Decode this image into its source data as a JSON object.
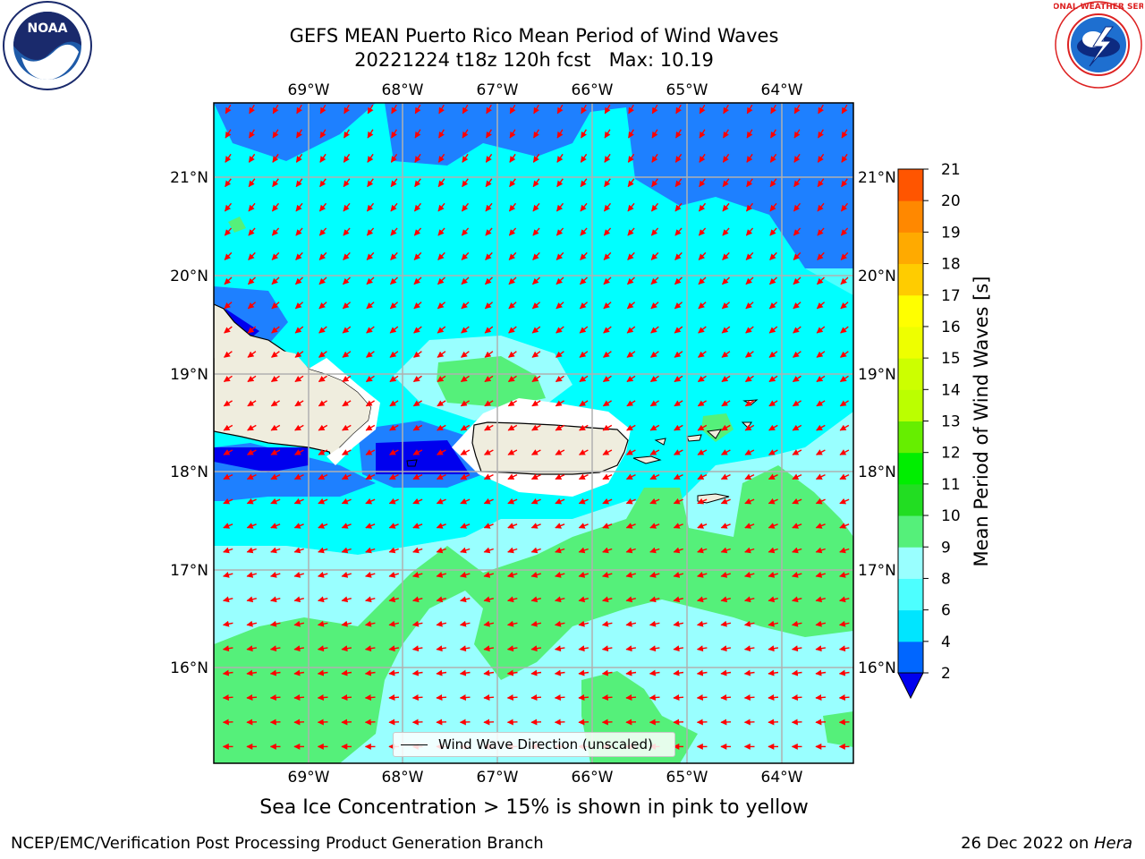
{
  "title": {
    "line1": "GEFS MEAN Puerto Rico Mean Period of Wind Waves",
    "line2": "20221224 t18z 120h fcst   Max: 10.19"
  },
  "map": {
    "lon_labels": [
      "69°W",
      "68°W",
      "67°W",
      "66°W",
      "65°W",
      "64°W"
    ],
    "lat_labels": [
      "21°N",
      "20°N",
      "19°N",
      "18°N",
      "17°N",
      "16°N"
    ],
    "legend_label": "Wind Wave Direction (unscaled)",
    "arrow_color": "#ff0000",
    "land_color": "#efedde"
  },
  "colorbar": {
    "label": "Mean Period of Wind Waves [s]",
    "ticks": [
      "2",
      "4",
      "6",
      "8",
      "9",
      "10",
      "11",
      "12",
      "13",
      "14",
      "15",
      "16",
      "17",
      "18",
      "19",
      "20",
      "21"
    ],
    "colors": [
      "#0066ff",
      "#00e5ff",
      "#4dffff",
      "#99ffff",
      "#55f07a",
      "#22dd22",
      "#00ee00",
      "#66ee00",
      "#bbff00",
      "#ccff00",
      "#eeff00",
      "#ffff00",
      "#ffcc00",
      "#ffaa00",
      "#ff8800",
      "#ff5500",
      "#ff2200",
      "#ff0000"
    ],
    "under_color": "#0000ee"
  },
  "footer": {
    "ice_note": "Sea Ice Concentration > 15% is shown in pink to yellow",
    "branch": "NCEP/EMC/Verification Post Processing Product Generation Branch",
    "date": "26 Dec 2022 on ",
    "host": "Hera"
  },
  "logos": {
    "noaa_text": "NOAA",
    "nws_text": "NATIONAL WEATHER SERVICE"
  }
}
